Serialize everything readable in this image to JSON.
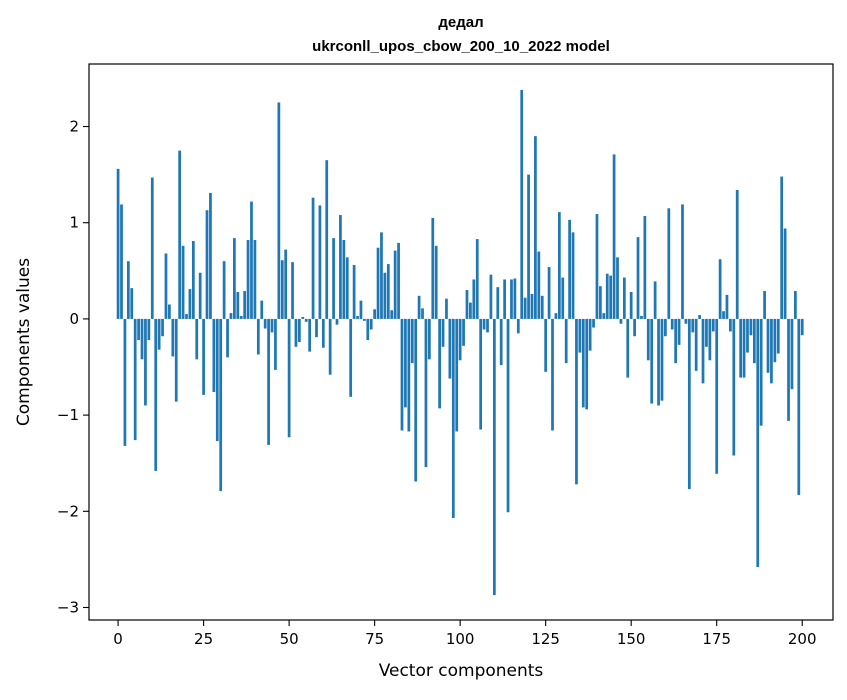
{
  "chart_data": {
    "type": "bar",
    "title": "дедал",
    "subtitle": "ukrconll_upos_cbow_200_10_2022 model",
    "xlabel": "Vector components",
    "ylabel": "Components values",
    "xlim": [
      -8.5,
      209
    ],
    "ylim": [
      -3.13,
      2.65
    ],
    "xticks": [
      0,
      25,
      50,
      75,
      100,
      125,
      150,
      175,
      200
    ],
    "yticks": [
      -3,
      -2,
      -1,
      0,
      1,
      2
    ],
    "bar_color": "#1f77b4",
    "grid": false,
    "legend": "none",
    "values": [
      1.56,
      1.19,
      -1.32,
      0.6,
      0.32,
      -1.26,
      -0.22,
      -0.42,
      -0.9,
      -0.22,
      1.47,
      -1.58,
      -0.32,
      -0.18,
      0.68,
      0.15,
      -0.39,
      -0.86,
      1.75,
      0.76,
      0.05,
      0.31,
      0.81,
      -0.42,
      0.48,
      -0.79,
      1.13,
      1.31,
      -0.76,
      -1.27,
      -1.79,
      0.6,
      -0.4,
      0.06,
      0.84,
      0.28,
      0.03,
      0.29,
      0.82,
      1.22,
      0.82,
      -0.37,
      0.19,
      -0.1,
      -1.31,
      -0.14,
      -0.53,
      2.25,
      0.61,
      0.72,
      -1.23,
      0.59,
      -0.29,
      -0.24,
      0.02,
      -0.03,
      -0.34,
      1.26,
      -0.19,
      1.18,
      -0.3,
      1.65,
      -0.58,
      0.84,
      -0.06,
      1.08,
      0.82,
      0.64,
      -0.81,
      0.56,
      0.03,
      0.19,
      -0.02,
      -0.22,
      -0.11,
      0.1,
      0.74,
      0.9,
      0.48,
      0.57,
      0.09,
      0.71,
      0.79,
      -1.16,
      -0.92,
      -1.17,
      -0.46,
      -1.69,
      0.24,
      0.11,
      -1.54,
      -0.42,
      1.05,
      0.76,
      -0.93,
      -0.29,
      0.21,
      -0.62,
      -2.07,
      -1.17,
      -0.43,
      -0.28,
      0.3,
      0.17,
      0.41,
      0.83,
      -1.15,
      -0.11,
      -0.14,
      0.46,
      -2.87,
      0.33,
      -0.48,
      0.41,
      -2.01,
      0.41,
      0.42,
      -0.15,
      2.38,
      0.22,
      1.5,
      0.26,
      1.9,
      0.7,
      0.24,
      -0.55,
      0.54,
      -1.16,
      0.06,
      1.11,
      0.43,
      -0.46,
      1.03,
      0.9,
      -1.72,
      -0.35,
      -0.92,
      -0.94,
      -0.33,
      -0.09,
      1.09,
      0.34,
      0.06,
      0.47,
      0.45,
      1.71,
      0.64,
      -0.05,
      0.43,
      -0.61,
      0.28,
      -0.18,
      0.85,
      0.03,
      1.07,
      -0.43,
      -0.88,
      0.39,
      -0.9,
      -0.85,
      -0.18,
      1.15,
      -0.11,
      -0.46,
      -0.27,
      1.19,
      -0.05,
      -1.77,
      -0.14,
      -0.54,
      0.04,
      -0.67,
      -0.29,
      -0.43,
      -0.13,
      -1.61,
      0.62,
      0.08,
      0.25,
      -0.13,
      -1.42,
      1.34,
      -0.61,
      -0.61,
      -0.35,
      -0.17,
      -0.46,
      -2.58,
      -1.11,
      0.29,
      -0.56,
      -0.67,
      -0.45,
      -0.36,
      1.48,
      0.94,
      -1.06,
      -0.73,
      0.29,
      -1.83,
      -0.17
    ]
  }
}
